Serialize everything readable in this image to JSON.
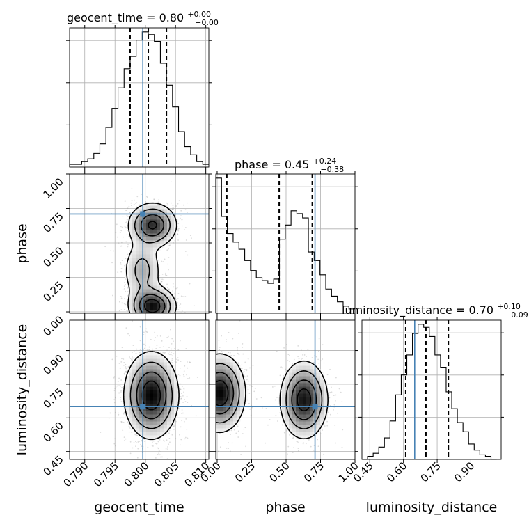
{
  "chart_data": {
    "type": "corner",
    "parameters": [
      "geocent_time",
      "phase",
      "luminosity_distance"
    ],
    "truths": {
      "geocent_time": 0.7996,
      "phase": 0.71,
      "luminosity_distance": 0.65
    },
    "titles": {
      "geocent_time": {
        "label": "geocent_time",
        "median": "0.80",
        "plus": "+0.00",
        "minus": "−0.00"
      },
      "phase": {
        "label": "phase",
        "median": "0.45",
        "plus": "+0.24",
        "minus": "−0.38"
      },
      "luminosity_distance": {
        "label": "luminosity_distance",
        "median": "0.70",
        "plus": "+0.10",
        "minus": "−0.09"
      }
    },
    "ranges": {
      "geocent_time": [
        0.7875,
        0.8105
      ],
      "phase": [
        -0.01,
        1.0
      ],
      "luminosity_distance": [
        0.415,
        1.035
      ]
    },
    "ticks": {
      "geocent_time": [
        0.79,
        0.795,
        0.8,
        0.805,
        0.81
      ],
      "phase": [
        0.0,
        0.25,
        0.5,
        0.75,
        1.0
      ],
      "luminosity_distance": [
        0.45,
        0.6,
        0.75,
        0.9
      ]
    },
    "tick_labels": {
      "geocent_time": [
        "0.790",
        "0.795",
        "0.800",
        "0.805",
        "0.810"
      ],
      "phase": [
        "0.00",
        "0.25",
        "0.50",
        "0.75",
        "1.00"
      ],
      "luminosity_distance": [
        "0.45",
        "0.60",
        "0.75",
        "0.90"
      ]
    },
    "quantiles": {
      "geocent_time": [
        0.7975,
        0.8005,
        0.8035
      ],
      "phase": [
        0.07,
        0.45,
        0.69
      ],
      "luminosity_distance": [
        0.61,
        0.7,
        0.8
      ]
    },
    "histograms": {
      "geocent_time": {
        "edges": [
          0.7875,
          0.7885,
          0.7895,
          0.7905,
          0.7915,
          0.7925,
          0.7935,
          0.7945,
          0.7955,
          0.7965,
          0.7975,
          0.7985,
          0.7995,
          0.8005,
          0.8015,
          0.8025,
          0.8035,
          0.8045,
          0.8055,
          0.8065,
          0.8075,
          0.8085,
          0.8095,
          0.8105
        ],
        "counts": [
          2,
          2,
          4,
          6,
          10,
          17,
          29,
          43,
          58,
          72,
          81,
          93,
          99,
          97,
          92,
          76,
          60,
          44,
          26,
          15,
          9,
          4,
          2
        ]
      },
      "phase": {
        "edges": [
          -0.01,
          0.032,
          0.074,
          0.116,
          0.158,
          0.2,
          0.242,
          0.284,
          0.326,
          0.368,
          0.41,
          0.452,
          0.494,
          0.536,
          0.578,
          0.62,
          0.662,
          0.704,
          0.746,
          0.788,
          0.83,
          0.872,
          0.914,
          0.956,
          1.0
        ],
        "counts": [
          95,
          68,
          56,
          50,
          45,
          37,
          30,
          25,
          23,
          21,
          24,
          52,
          62,
          72,
          70,
          67,
          43,
          37,
          27,
          17,
          12,
          8,
          5,
          3
        ]
      },
      "luminosity_distance": {
        "edges": [
          0.415,
          0.44,
          0.465,
          0.49,
          0.515,
          0.54,
          0.565,
          0.59,
          0.615,
          0.64,
          0.665,
          0.69,
          0.715,
          0.74,
          0.765,
          0.79,
          0.815,
          0.84,
          0.865,
          0.89,
          0.915,
          0.94,
          0.965,
          0.99,
          1.015
        ],
        "counts": [
          0,
          2,
          4,
          8,
          14,
          25,
          42,
          55,
          68,
          82,
          88,
          86,
          80,
          68,
          60,
          44,
          33,
          24,
          18,
          10,
          6,
          3,
          2,
          0
        ]
      }
    },
    "density_2d": {
      "phase_vs_geocent_time": {
        "modes": [
          {
            "x": 0.8012,
            "y": 0.63,
            "sx": 0.002,
            "sy": 0.08,
            "w": 1.0
          },
          {
            "x": 0.8012,
            "y": 0.04,
            "sx": 0.0019,
            "sy": 0.07,
            "w": 1.15
          },
          {
            "x": 0.7995,
            "y": 0.3,
            "sx": 0.0017,
            "sy": 0.12,
            "w": 0.45
          }
        ]
      },
      "luminosity_distance_vs_geocent_time": {
        "modes": [
          {
            "x": 0.801,
            "y": 0.7,
            "sx": 0.0022,
            "sy": 0.095,
            "w": 1.0
          }
        ]
      },
      "luminosity_distance_vs_phase": {
        "modes": [
          {
            "x": 0.02,
            "y": 0.71,
            "sx": 0.09,
            "sy": 0.085,
            "w": 1.0
          },
          {
            "x": 0.63,
            "y": 0.68,
            "sx": 0.085,
            "sy": 0.085,
            "w": 0.95
          }
        ]
      }
    },
    "contour_levels": [
      0.12,
      0.3,
      0.55,
      0.8
    ],
    "grid": true,
    "legend": "none",
    "truth_color": "#4682b4"
  }
}
